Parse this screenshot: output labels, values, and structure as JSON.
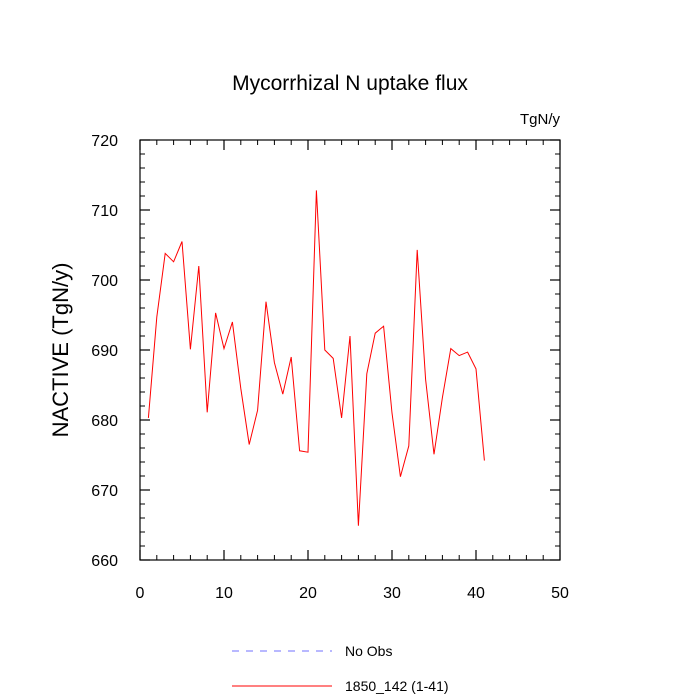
{
  "chart_data": {
    "type": "line",
    "title": "Mycorrhizal N uptake flux",
    "units_label": "TgN/y",
    "xlabel": "",
    "ylabel": "NACTIVE  (TgN/y)",
    "xlim": [
      0,
      50
    ],
    "ylim": [
      660,
      720
    ],
    "x_ticks": [
      0,
      10,
      20,
      30,
      40,
      50
    ],
    "y_ticks": [
      660,
      670,
      680,
      690,
      700,
      710,
      720
    ],
    "grid": false,
    "legend_position": "bottom",
    "series": [
      {
        "name": "No Obs",
        "color": "#7070ff",
        "dash": "dashed",
        "x": [],
        "values": []
      },
      {
        "name": "1850_142 (1-41)",
        "color": "#ff0000",
        "dash": "solid",
        "x": [
          1,
          2,
          3,
          4,
          5,
          6,
          7,
          8,
          9,
          10,
          11,
          12,
          13,
          14,
          15,
          16,
          17,
          18,
          19,
          20,
          21,
          22,
          23,
          24,
          25,
          26,
          27,
          28,
          29,
          30,
          31,
          32,
          33,
          34,
          35,
          36,
          37,
          38,
          39,
          40,
          41
        ],
        "values": [
          680.3,
          694.7,
          703.8,
          702.6,
          705.5,
          690.1,
          702.0,
          681.1,
          695.3,
          690.2,
          694.0,
          684.5,
          676.5,
          681.4,
          696.9,
          688.2,
          683.7,
          689.0,
          675.6,
          675.4,
          712.8,
          690.0,
          688.8,
          680.3,
          692.0,
          664.9,
          686.6,
          692.4,
          693.4,
          681.0,
          671.9,
          676.3,
          704.3,
          685.8,
          675.1,
          683.2,
          690.2,
          689.2,
          689.7,
          687.3,
          674.2
        ]
      }
    ]
  }
}
